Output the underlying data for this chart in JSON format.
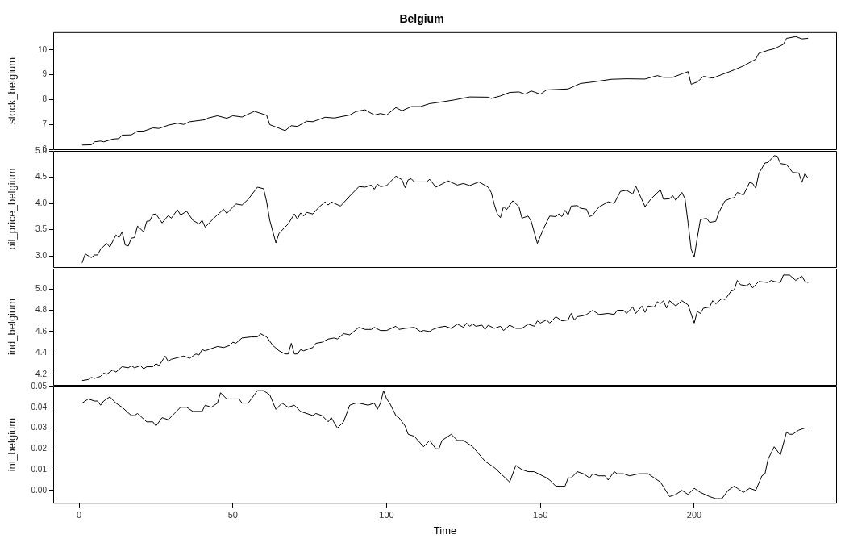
{
  "chart_data": [
    {
      "type": "line",
      "title": "Belgium",
      "ylabel": "stock_belgium",
      "color": "#000000",
      "xlim": [
        -8.4,
        246.4
      ],
      "xticks": [
        0,
        50,
        100,
        150,
        200
      ],
      "ylim": [
        6.0,
        10.72
      ],
      "yticks": [
        6,
        7,
        8,
        9,
        10
      ],
      "tick_labels": "y",
      "x": [
        1,
        4,
        5,
        7,
        8,
        11,
        13,
        14,
        17,
        19,
        21,
        24,
        26,
        29,
        32,
        34,
        36,
        41,
        42,
        45,
        48,
        50,
        53,
        57,
        61,
        62,
        65,
        67,
        69,
        71,
        74,
        76,
        80,
        83,
        88,
        90,
        93,
        96,
        98,
        100,
        103,
        105,
        108,
        111,
        114,
        118,
        122,
        127,
        133,
        134,
        137,
        140,
        143,
        145,
        147,
        150,
        152,
        159,
        163,
        167,
        173,
        178,
        184,
        188,
        190,
        193,
        196,
        198,
        199,
        201,
        203,
        206,
        213,
        216,
        220,
        221,
        224,
        226,
        229,
        230,
        233,
        235,
        237
      ],
      "values": [
        6.17,
        6.18,
        6.3,
        6.33,
        6.3,
        6.41,
        6.43,
        6.57,
        6.58,
        6.73,
        6.73,
        6.86,
        6.84,
        6.97,
        7.05,
        7.0,
        7.11,
        7.19,
        7.26,
        7.35,
        7.25,
        7.35,
        7.3,
        7.53,
        7.37,
        6.99,
        6.85,
        6.75,
        6.95,
        6.92,
        7.13,
        7.11,
        7.29,
        7.26,
        7.38,
        7.52,
        7.59,
        7.38,
        7.44,
        7.38,
        7.68,
        7.55,
        7.72,
        7.72,
        7.84,
        7.91,
        7.99,
        8.11,
        8.1,
        8.05,
        8.15,
        8.29,
        8.31,
        8.22,
        8.35,
        8.22,
        8.39,
        8.43,
        8.65,
        8.71,
        8.82,
        8.84,
        8.83,
        8.97,
        8.9,
        8.9,
        9.04,
        9.13,
        8.62,
        8.71,
        8.94,
        8.87,
        9.2,
        9.36,
        9.63,
        9.87,
        9.99,
        10.05,
        10.23,
        10.47,
        10.54,
        10.45,
        10.47
      ]
    },
    {
      "type": "line",
      "ylabel": "oil_price_belgium",
      "color": "#000000",
      "xlim": [
        -8.4,
        246.4
      ],
      "xticks": [
        0,
        50,
        100,
        150,
        200
      ],
      "ylim": [
        2.79,
        5.0
      ],
      "yticks": [
        {
          "value": 3,
          "label": "3.0"
        },
        3.5,
        {
          "value": 4,
          "label": "4.0"
        },
        4.5,
        {
          "value": 5,
          "label": "5.0"
        }
      ],
      "tick_labels": "y",
      "x": [
        1,
        2,
        4,
        5,
        6,
        7,
        9,
        10,
        12,
        13,
        14,
        15,
        16,
        17,
        18,
        19,
        21,
        22,
        23,
        24,
        25,
        27,
        29,
        30,
        32,
        33,
        35,
        37,
        39,
        40,
        41,
        44,
        47,
        48,
        51,
        53,
        55,
        58,
        60,
        61,
        62,
        64,
        65,
        68,
        70,
        71,
        72,
        73,
        74,
        76,
        78,
        80,
        81,
        82,
        85,
        88,
        91,
        93,
        95,
        96,
        97,
        98,
        100,
        103,
        105,
        106,
        107,
        108,
        109,
        113,
        114,
        116,
        118,
        120,
        123,
        125,
        127,
        130,
        133,
        134,
        135,
        136,
        137,
        138,
        139,
        141,
        143,
        144,
        146,
        147,
        149,
        151,
        153,
        155,
        156,
        157,
        158,
        159,
        160,
        162,
        163,
        165,
        166,
        167,
        169,
        172,
        174,
        176,
        178,
        180,
        181,
        184,
        186,
        189,
        190,
        192,
        193,
        194,
        196,
        197,
        198,
        199,
        200,
        201,
        202,
        204,
        205,
        207,
        208,
        210,
        212,
        213,
        214,
        216,
        218,
        219,
        220,
        221,
        223,
        224,
        226,
        227,
        228,
        230,
        232,
        234,
        235,
        236,
        237
      ],
      "values": [
        2.87,
        3.04,
        2.97,
        3.02,
        3.02,
        3.13,
        3.24,
        3.17,
        3.4,
        3.35,
        3.46,
        3.21,
        3.19,
        3.34,
        3.35,
        3.57,
        3.46,
        3.66,
        3.67,
        3.79,
        3.8,
        3.63,
        3.77,
        3.72,
        3.88,
        3.78,
        3.85,
        3.68,
        3.61,
        3.68,
        3.55,
        3.73,
        3.89,
        3.81,
        3.99,
        3.97,
        4.08,
        4.31,
        4.28,
        4.03,
        3.68,
        3.25,
        3.43,
        3.61,
        3.8,
        3.7,
        3.82,
        3.76,
        3.83,
        3.8,
        3.93,
        4.03,
        3.97,
        4.03,
        3.95,
        4.14,
        4.32,
        4.31,
        4.35,
        4.27,
        4.37,
        4.32,
        4.34,
        4.52,
        4.45,
        4.3,
        4.45,
        4.47,
        4.41,
        4.41,
        4.46,
        4.31,
        4.37,
        4.43,
        4.35,
        4.38,
        4.34,
        4.41,
        4.31,
        4.21,
        3.98,
        3.8,
        3.73,
        3.94,
        3.88,
        4.05,
        3.94,
        3.72,
        3.76,
        3.66,
        3.24,
        3.52,
        3.76,
        3.75,
        3.8,
        3.75,
        3.87,
        3.78,
        3.95,
        3.96,
        3.91,
        3.89,
        3.75,
        3.78,
        3.93,
        4.03,
        4.0,
        4.23,
        4.25,
        4.18,
        4.33,
        3.94,
        4.09,
        4.26,
        4.08,
        4.09,
        4.15,
        4.06,
        4.21,
        4.09,
        3.63,
        3.13,
        2.98,
        3.35,
        3.69,
        3.72,
        3.64,
        3.66,
        3.83,
        4.05,
        4.1,
        4.11,
        4.21,
        4.16,
        4.4,
        4.38,
        4.29,
        4.57,
        4.77,
        4.78,
        4.91,
        4.9,
        4.76,
        4.74,
        4.59,
        4.58,
        4.4,
        4.57,
        4.48
      ]
    },
    {
      "type": "line",
      "ylabel": "ind_belgium",
      "color": "#000000",
      "xlim": [
        -8.4,
        246.4
      ],
      "xticks": [
        0,
        50,
        100,
        150,
        200
      ],
      "ylim": [
        4.1,
        5.19
      ],
      "yticks": [
        4.2,
        4.4,
        4.6,
        4.8,
        {
          "value": 5,
          "label": "5.0"
        }
      ],
      "tick_labels": "y",
      "x": [
        1,
        3,
        4,
        5,
        7,
        8,
        9,
        11,
        12,
        14,
        16,
        17,
        18,
        20,
        21,
        22,
        24,
        25,
        26,
        28,
        29,
        30,
        34,
        36,
        38,
        39,
        40,
        41,
        45,
        47,
        49,
        50,
        51,
        53,
        56,
        58,
        59,
        61,
        63,
        65,
        67,
        68,
        69,
        70,
        71,
        72,
        73,
        76,
        77,
        79,
        81,
        83,
        84,
        86,
        88,
        91,
        93,
        95,
        96,
        98,
        100,
        103,
        104,
        106,
        109,
        111,
        112,
        114,
        115,
        117,
        119,
        121,
        123,
        125,
        126,
        127,
        128,
        129,
        131,
        132,
        133,
        135,
        137,
        138,
        140,
        142,
        144,
        146,
        148,
        149,
        150,
        152,
        153,
        155,
        157,
        159,
        160,
        161,
        162,
        164,
        165,
        167,
        169,
        172,
        174,
        175,
        177,
        178,
        180,
        181,
        183,
        184,
        185,
        187,
        188,
        189,
        190,
        191,
        192,
        194,
        196,
        198,
        200,
        201,
        202,
        203,
        205,
        206,
        207,
        209,
        210,
        212,
        213,
        214,
        215,
        217,
        218,
        219,
        221,
        224,
        225,
        226,
        228,
        229,
        231,
        233,
        235,
        236,
        237
      ],
      "values": [
        4.14,
        4.15,
        4.17,
        4.16,
        4.18,
        4.21,
        4.2,
        4.24,
        4.22,
        4.27,
        4.26,
        4.28,
        4.26,
        4.28,
        4.25,
        4.27,
        4.27,
        4.3,
        4.28,
        4.37,
        4.32,
        4.34,
        4.37,
        4.35,
        4.39,
        4.38,
        4.43,
        4.42,
        4.46,
        4.45,
        4.47,
        4.5,
        4.49,
        4.54,
        4.55,
        4.55,
        4.58,
        4.55,
        4.47,
        4.42,
        4.39,
        4.39,
        4.49,
        4.39,
        4.39,
        4.43,
        4.42,
        4.45,
        4.49,
        4.5,
        4.53,
        4.54,
        4.53,
        4.58,
        4.57,
        4.64,
        4.62,
        4.62,
        4.64,
        4.61,
        4.61,
        4.65,
        4.62,
        4.63,
        4.64,
        4.6,
        4.61,
        4.6,
        4.62,
        4.64,
        4.65,
        4.63,
        4.67,
        4.64,
        4.68,
        4.65,
        4.67,
        4.65,
        4.66,
        4.62,
        4.66,
        4.63,
        4.65,
        4.61,
        4.66,
        4.63,
        4.63,
        4.67,
        4.65,
        4.7,
        4.68,
        4.71,
        4.68,
        4.74,
        4.7,
        4.71,
        4.77,
        4.71,
        4.74,
        4.75,
        4.76,
        4.8,
        4.76,
        4.77,
        4.76,
        4.8,
        4.8,
        4.77,
        4.83,
        4.77,
        4.84,
        4.78,
        4.84,
        4.83,
        4.88,
        4.86,
        4.89,
        4.82,
        4.89,
        4.84,
        4.89,
        4.85,
        4.68,
        4.79,
        4.77,
        4.82,
        4.83,
        4.89,
        4.86,
        4.91,
        4.9,
        4.98,
        4.99,
        5.08,
        5.04,
        5.03,
        5.05,
        5.01,
        5.07,
        5.06,
        5.08,
        5.07,
        5.06,
        5.13,
        5.13,
        5.08,
        5.12,
        5.07,
        5.06
      ]
    },
    {
      "type": "line",
      "ylabel": "int_belgium",
      "xlabel": "Time",
      "color": "#000000",
      "xlim": [
        -8.4,
        246.4
      ],
      "xticks": [
        0,
        50,
        100,
        150,
        200
      ],
      "ylim": [
        -0.006,
        0.05
      ],
      "yticks": [
        {
          "value": 0,
          "label": "0.00"
        },
        0.01,
        0.02,
        0.03,
        0.04,
        0.05
      ],
      "x": [
        1,
        2,
        3,
        5,
        6,
        7,
        8,
        10,
        12,
        14,
        17,
        18,
        19,
        22,
        24,
        25,
        27,
        29,
        31,
        33,
        35,
        37,
        40,
        41,
        43,
        45,
        46,
        48,
        50,
        52,
        53,
        55,
        58,
        60,
        62,
        64,
        66,
        68,
        70,
        72,
        76,
        77,
        79,
        81,
        82,
        84,
        86,
        88,
        90,
        91,
        94,
        96,
        97,
        98,
        99,
        100,
        101,
        103,
        104,
        106,
        107,
        109,
        112,
        114,
        116,
        117,
        118,
        121,
        123,
        125,
        128,
        132,
        135,
        140,
        142,
        144,
        146,
        148,
        152,
        153,
        155,
        158,
        159,
        160,
        162,
        164,
        166,
        167,
        169,
        171,
        172,
        174,
        175,
        177,
        179,
        182,
        185,
        188,
        189,
        192,
        194,
        196,
        198,
        200,
        202,
        205,
        207,
        209,
        211,
        213,
        214,
        216,
        218,
        220,
        222,
        223,
        224,
        226,
        228,
        230,
        231,
        232,
        234,
        236,
        237
      ],
      "values": [
        0.042,
        0.043,
        0.044,
        0.043,
        0.043,
        0.041,
        0.043,
        0.045,
        0.042,
        0.04,
        0.036,
        0.036,
        0.037,
        0.033,
        0.033,
        0.031,
        0.035,
        0.034,
        0.037,
        0.04,
        0.04,
        0.038,
        0.038,
        0.041,
        0.04,
        0.042,
        0.047,
        0.044,
        0.044,
        0.044,
        0.042,
        0.042,
        0.048,
        0.048,
        0.046,
        0.039,
        0.042,
        0.04,
        0.041,
        0.038,
        0.036,
        0.037,
        0.036,
        0.033,
        0.035,
        0.03,
        0.033,
        0.041,
        0.042,
        0.042,
        0.041,
        0.042,
        0.039,
        0.042,
        0.048,
        0.044,
        0.042,
        0.036,
        0.035,
        0.031,
        0.027,
        0.026,
        0.021,
        0.024,
        0.02,
        0.02,
        0.024,
        0.027,
        0.024,
        0.024,
        0.021,
        0.014,
        0.011,
        0.004,
        0.012,
        0.01,
        0.009,
        0.009,
        0.006,
        0.005,
        0.002,
        0.002,
        0.006,
        0.006,
        0.009,
        0.008,
        0.006,
        0.008,
        0.007,
        0.007,
        0.005,
        0.009,
        0.008,
        0.008,
        0.007,
        0.008,
        0.008,
        0.005,
        0.004,
        -0.003,
        -0.002,
        0.0,
        -0.002,
        0.001,
        -0.001,
        -0.003,
        -0.004,
        -0.004,
        0.0,
        0.002,
        0.001,
        -0.001,
        0.001,
        0.0,
        0.007,
        0.008,
        0.015,
        0.021,
        0.017,
        0.028,
        0.027,
        0.027,
        0.029,
        0.03,
        0.03
      ]
    }
  ]
}
